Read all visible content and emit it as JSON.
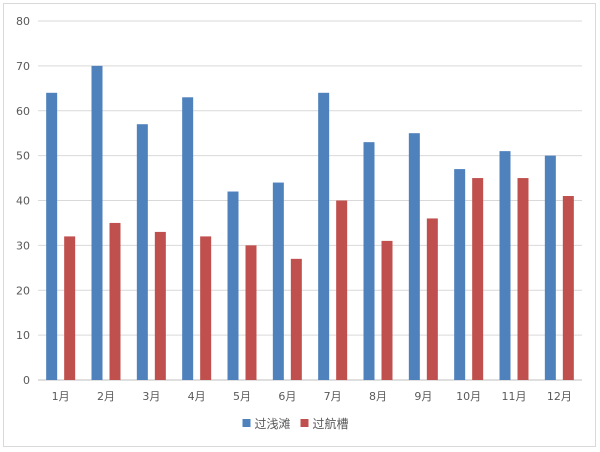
{
  "chart_data": {
    "type": "bar",
    "title": "",
    "xlabel": "",
    "ylabel": "",
    "ylim": [
      0,
      80
    ],
    "yticks": [
      0,
      10,
      20,
      30,
      40,
      50,
      60,
      70,
      80
    ],
    "grid": true,
    "legend_position": "bottom",
    "categories": [
      "1月",
      "2月",
      "3月",
      "4月",
      "5月",
      "6月",
      "7月",
      "8月",
      "9月",
      "10月",
      "11月",
      "12月"
    ],
    "series": [
      {
        "name": "过浅滩",
        "color": "#4f81bd",
        "values": [
          64,
          70,
          57,
          63,
          42,
          44,
          64,
          53,
          55,
          47,
          51,
          50
        ]
      },
      {
        "name": "过航槽",
        "color": "#c0504d",
        "values": [
          32,
          35,
          33,
          32,
          30,
          27,
          40,
          31,
          36,
          45,
          45,
          41
        ]
      }
    ]
  }
}
